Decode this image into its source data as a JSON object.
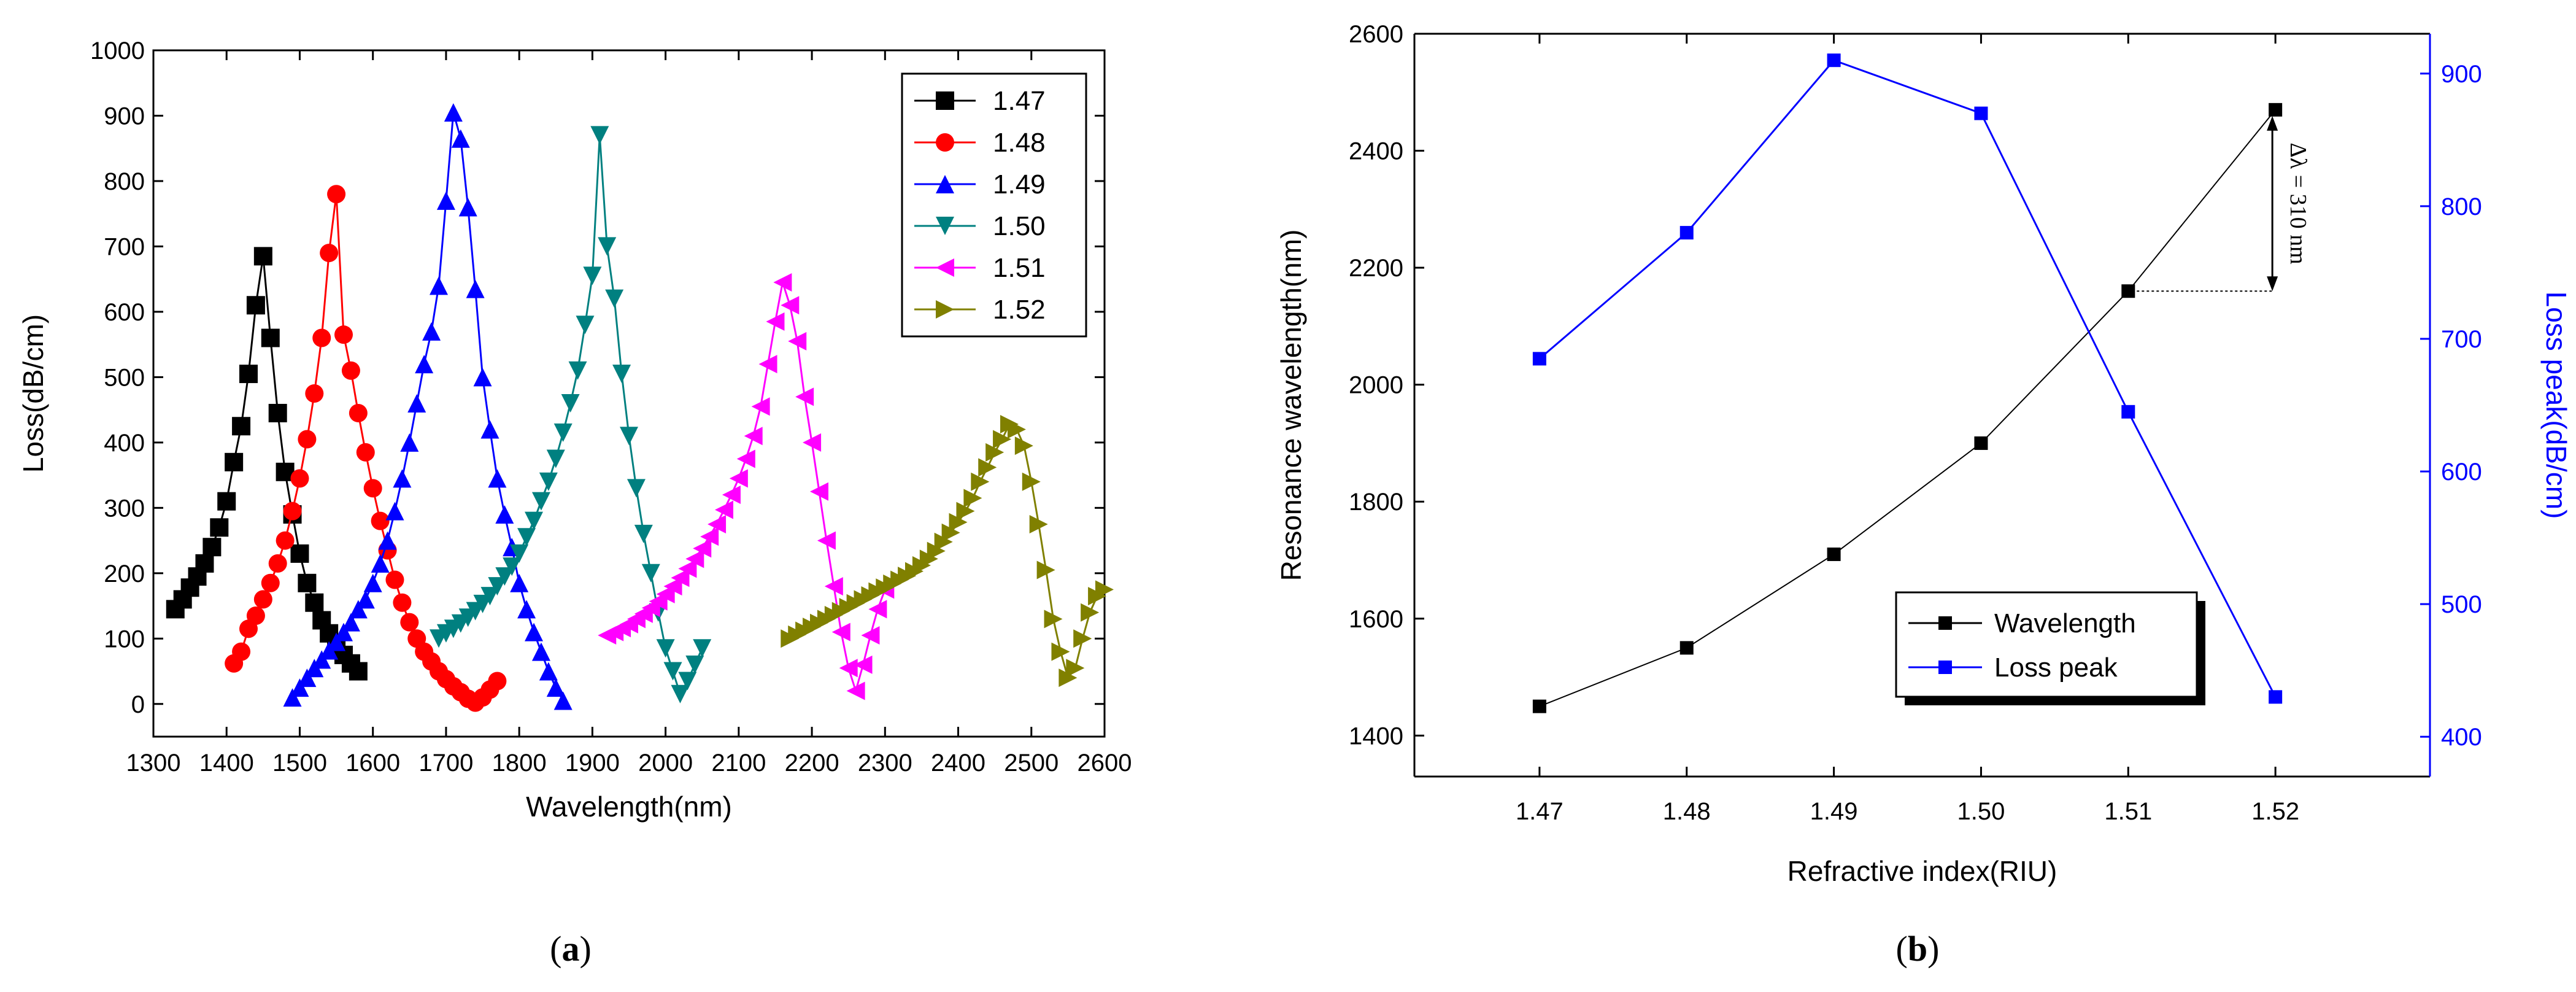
{
  "chart_data": [
    {
      "type": "line",
      "panel_label": "(a)",
      "panel_letter": "a",
      "xlabel": "Wavelength(nm)",
      "ylabel": "Loss(dB/cm)",
      "xlim": [
        1300,
        2600
      ],
      "ylim": [
        -50,
        1000
      ],
      "xticks": [
        1300,
        1400,
        1500,
        1600,
        1700,
        1800,
        1900,
        2000,
        2100,
        2200,
        2300,
        2400,
        2500,
        2600
      ],
      "yticks": [
        0,
        100,
        200,
        300,
        400,
        500,
        600,
        700,
        800,
        900,
        1000
      ],
      "legend_position": "top-right",
      "series": [
        {
          "name": "1.47",
          "color": "#000000",
          "marker": "square",
          "x": [
            1330,
            1340,
            1350,
            1360,
            1370,
            1380,
            1390,
            1400,
            1410,
            1420,
            1430,
            1440,
            1450,
            1460,
            1470,
            1480,
            1490,
            1500,
            1510,
            1520,
            1530,
            1540,
            1550,
            1560,
            1570,
            1580
          ],
          "y": [
            145,
            160,
            178,
            195,
            215,
            240,
            270,
            310,
            370,
            425,
            505,
            610,
            685,
            560,
            445,
            355,
            290,
            230,
            185,
            155,
            128,
            108,
            90,
            75,
            62,
            50
          ]
        },
        {
          "name": "1.48",
          "color": "#ff0000",
          "marker": "circle",
          "x": [
            1410,
            1420,
            1430,
            1440,
            1450,
            1460,
            1470,
            1480,
            1490,
            1500,
            1510,
            1520,
            1530,
            1540,
            1550,
            1560,
            1570,
            1580,
            1590,
            1600,
            1610,
            1620,
            1630,
            1640,
            1650,
            1660,
            1670,
            1680,
            1690,
            1700,
            1710,
            1720,
            1730,
            1740,
            1750,
            1760,
            1770
          ],
          "y": [
            62,
            80,
            115,
            135,
            160,
            185,
            215,
            250,
            295,
            345,
            405,
            475,
            560,
            690,
            780,
            565,
            510,
            445,
            385,
            330,
            280,
            235,
            190,
            155,
            125,
            100,
            80,
            65,
            50,
            38,
            27,
            18,
            8,
            2,
            10,
            22,
            35
          ]
        },
        {
          "name": "1.49",
          "color": "#0000ff",
          "marker": "triangle-up",
          "x": [
            1490,
            1500,
            1510,
            1520,
            1530,
            1540,
            1550,
            1560,
            1570,
            1580,
            1590,
            1600,
            1610,
            1620,
            1630,
            1640,
            1650,
            1660,
            1670,
            1680,
            1690,
            1700,
            1710,
            1720,
            1730,
            1740,
            1750,
            1760,
            1770,
            1780,
            1790,
            1800,
            1810,
            1820,
            1830,
            1840,
            1850,
            1860
          ],
          "y": [
            10,
            25,
            40,
            55,
            68,
            82,
            95,
            110,
            125,
            145,
            160,
            185,
            215,
            250,
            295,
            345,
            400,
            460,
            520,
            570,
            640,
            770,
            905,
            865,
            760,
            635,
            500,
            420,
            345,
            290,
            240,
            185,
            145,
            110,
            80,
            50,
            25,
            5
          ]
        },
        {
          "name": "1.50",
          "color": "#008080",
          "marker": "triangle-down",
          "x": [
            1690,
            1700,
            1710,
            1720,
            1730,
            1740,
            1750,
            1760,
            1770,
            1780,
            1790,
            1800,
            1810,
            1820,
            1830,
            1840,
            1850,
            1860,
            1870,
            1880,
            1890,
            1900,
            1910,
            1920,
            1930,
            1940,
            1950,
            1960,
            1970,
            1980,
            1990,
            2000,
            2010,
            2020,
            2030,
            2040,
            2050
          ],
          "y": [
            100,
            108,
            115,
            123,
            132,
            142,
            153,
            165,
            180,
            195,
            210,
            230,
            255,
            280,
            310,
            340,
            375,
            415,
            460,
            510,
            580,
            655,
            870,
            700,
            620,
            505,
            410,
            330,
            260,
            200,
            140,
            85,
            50,
            15,
            35,
            60,
            85
          ]
        },
        {
          "name": "1.51",
          "color": "#ff00ff",
          "marker": "triangle-left",
          "x": [
            1920,
            1930,
            1940,
            1950,
            1960,
            1970,
            1980,
            1990,
            2000,
            2010,
            2020,
            2030,
            2040,
            2050,
            2060,
            2070,
            2080,
            2090,
            2100,
            2110,
            2120,
            2130,
            2140,
            2150,
            2160,
            2170,
            2180,
            2190,
            2200,
            2210,
            2220,
            2230,
            2240,
            2250,
            2260,
            2270,
            2280,
            2290,
            2300
          ],
          "y": [
            105,
            110,
            116,
            122,
            130,
            138,
            147,
            157,
            168,
            180,
            193,
            207,
            222,
            238,
            256,
            275,
            297,
            320,
            345,
            375,
            410,
            455,
            520,
            585,
            645,
            610,
            555,
            470,
            400,
            325,
            250,
            180,
            110,
            55,
            20,
            60,
            105,
            145,
            175
          ]
        },
        {
          "name": "1.52",
          "color": "#808000",
          "marker": "triangle-right",
          "x": [
            2170,
            2180,
            2190,
            2200,
            2210,
            2220,
            2230,
            2240,
            2250,
            2260,
            2270,
            2280,
            2290,
            2300,
            2310,
            2320,
            2330,
            2340,
            2350,
            2360,
            2370,
            2380,
            2390,
            2400,
            2410,
            2420,
            2430,
            2440,
            2450,
            2460,
            2470,
            2480,
            2490,
            2500,
            2510,
            2520,
            2530,
            2540,
            2550,
            2560,
            2570,
            2580,
            2590,
            2600
          ],
          "y": [
            100,
            106,
            112,
            118,
            124,
            130,
            136,
            142,
            148,
            154,
            160,
            166,
            172,
            178,
            184,
            190,
            196,
            203,
            212,
            222,
            234,
            248,
            262,
            278,
            295,
            315,
            340,
            362,
            385,
            405,
            428,
            420,
            395,
            340,
            275,
            205,
            130,
            80,
            40,
            55,
            100,
            140,
            165,
            175
          ]
        }
      ]
    },
    {
      "type": "line",
      "panel_label": "(b)",
      "panel_letter": "b",
      "xlabel": "Refractive index(RIU)",
      "ylabel": "Resonance wavelength(nm)",
      "ylabel_right": "Loss peak(dB/cm)",
      "categories": [
        "1.47",
        "1.48",
        "1.49",
        "1.50",
        "1.51",
        "1.52"
      ],
      "xlim": [
        1.4615,
        1.5305
      ],
      "ylim": [
        1330,
        2600
      ],
      "ylim_right": [
        370,
        930
      ],
      "yticks": [
        1400,
        1600,
        1800,
        2000,
        2200,
        2400,
        2600
      ],
      "yticks_right": [
        400,
        500,
        600,
        700,
        800,
        900
      ],
      "legend_position": "bottom-center",
      "annotation": "Δλ = 310 nm",
      "series": [
        {
          "name": "Wavelength",
          "axis": "left",
          "color": "#000000",
          "x": [
            1.47,
            1.48,
            1.49,
            1.5,
            1.51,
            1.52
          ],
          "values": [
            1450,
            1550,
            1710,
            1900,
            2160,
            2470
          ]
        },
        {
          "name": "Loss peak",
          "axis": "right",
          "color": "#0000ff",
          "x": [
            1.47,
            1.48,
            1.49,
            1.5,
            1.51,
            1.52
          ],
          "values": [
            685,
            780,
            910,
            870,
            645,
            430
          ]
        }
      ]
    }
  ]
}
